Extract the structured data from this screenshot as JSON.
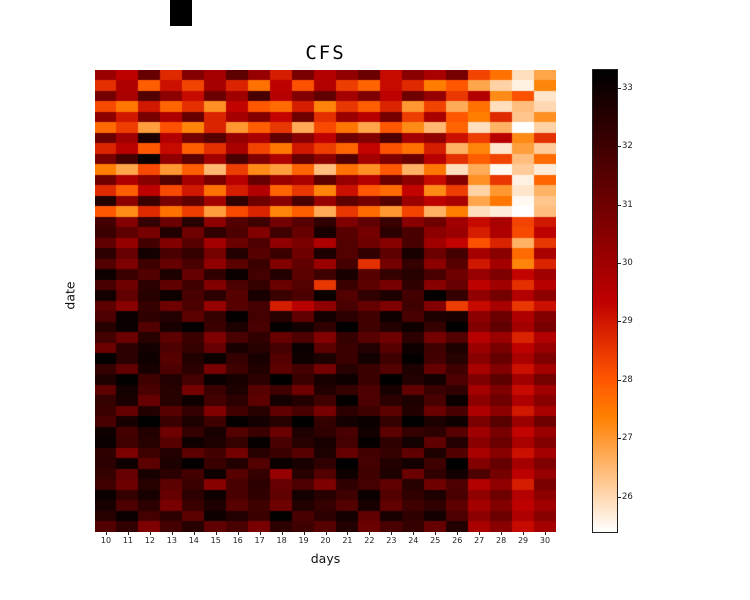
{
  "chart_data": {
    "type": "heatmap",
    "title": "CFS",
    "xlabel": "days",
    "ylabel": "date",
    "x_tick_labels": [
      "10",
      "11",
      "12",
      "13",
      "14",
      "15",
      "16",
      "17",
      "18",
      "19",
      "20",
      "21",
      "22",
      "23",
      "24",
      "25",
      "26",
      "27",
      "28",
      "29",
      "30"
    ],
    "y_tick_labels": [],
    "grid": false,
    "legend": false,
    "colormap": "gist_heat reversed (low=white/light-orange, high=dark-red/black)",
    "colorbar": {
      "position": "right",
      "ticks": [
        33,
        32,
        31,
        30,
        29,
        28,
        27,
        26
      ],
      "vmin": 25.4,
      "vmax": 33.3
    },
    "values": [
      [
        30.1,
        29.4,
        31.2,
        28.7,
        30.6,
        29.9,
        31.4,
        30.2,
        28.9,
        30.8,
        29.6,
        30.3,
        31.1,
        29.2,
        30.5,
        29.8,
        30.9,
        28.3,
        27.6,
        25.9,
        26.8
      ],
      [
        28.6,
        29.7,
        27.9,
        29.1,
        28.3,
        29.9,
        28.8,
        27.6,
        29.4,
        28.1,
        29.6,
        28.4,
        27.8,
        29.2,
        28.7,
        27.4,
        28.0,
        26.8,
        26.1,
        25.6,
        27.3
      ],
      [
        30.9,
        29.8,
        31.6,
        30.4,
        29.2,
        31.1,
        30.0,
        31.8,
        29.5,
        30.6,
        31.3,
        29.9,
        30.7,
        29.4,
        31.0,
        30.2,
        28.5,
        29.6,
        27.2,
        28.1,
        25.8
      ],
      [
        28.2,
        27.5,
        29.0,
        27.8,
        28.6,
        27.1,
        29.3,
        28.0,
        27.7,
        28.9,
        27.3,
        28.5,
        27.9,
        28.8,
        27.0,
        28.3,
        26.7,
        27.6,
        25.9,
        26.4,
        26.0
      ],
      [
        30.4,
        29.0,
        30.8,
        29.7,
        31.2,
        28.8,
        29.9,
        30.6,
        29.3,
        31.0,
        28.6,
        30.1,
        29.5,
        30.9,
        28.4,
        29.8,
        28.0,
        27.4,
        28.7,
        26.3,
        27.1
      ],
      [
        27.7,
        28.4,
        26.9,
        28.1,
        27.3,
        28.8,
        27.0,
        27.9,
        28.5,
        26.7,
        28.2,
        27.5,
        26.8,
        28.0,
        27.2,
        26.5,
        27.8,
        25.9,
        26.6,
        25.4,
        26.1
      ],
      [
        31.1,
        30.0,
        32.7,
        29.6,
        30.9,
        31.5,
        30.2,
        29.8,
        31.3,
        30.5,
        29.4,
        31.0,
        30.6,
        31.7,
        29.9,
        30.3,
        29.1,
        28.4,
        29.5,
        27.2,
        28.6
      ],
      [
        28.8,
        29.5,
        28.0,
        29.2,
        27.9,
        28.6,
        29.8,
        28.3,
        27.5,
        29.0,
        28.4,
        27.8,
        29.3,
        28.1,
        27.6,
        28.9,
        26.6,
        27.3,
        25.8,
        26.9,
        26.2
      ],
      [
        30.8,
        31.9,
        33.1,
        30.3,
        31.4,
        30.0,
        31.8,
        30.6,
        29.7,
        31.2,
        30.4,
        31.6,
        29.9,
        30.7,
        31.1,
        29.5,
        28.6,
        27.9,
        28.3,
        26.4,
        27.7
      ],
      [
        27.4,
        26.8,
        28.2,
        27.0,
        27.9,
        26.5,
        28.4,
        27.2,
        26.9,
        27.8,
        26.4,
        27.6,
        27.1,
        28.0,
        26.6,
        27.5,
        25.9,
        26.7,
        25.5,
        26.2,
        25.7
      ],
      [
        31.0,
        29.7,
        30.5,
        31.6,
        29.9,
        30.8,
        29.5,
        31.2,
        30.1,
        29.8,
        31.4,
        30.2,
        29.6,
        31.1,
        30.4,
        29.2,
        30.6,
        27.1,
        28.5,
        25.6,
        27.8
      ],
      [
        28.7,
        27.9,
        29.4,
        28.2,
        29.0,
        27.6,
        28.9,
        29.6,
        27.8,
        28.5,
        27.3,
        29.1,
        28.0,
        27.7,
        29.3,
        27.2,
        28.4,
        26.1,
        27.0,
        25.8,
        26.6
      ],
      [
        32.6,
        30.4,
        32.1,
        30.8,
        31.3,
        30.0,
        32.3,
        31.0,
        30.5,
        31.8,
        30.2,
        31.4,
        30.9,
        31.5,
        30.1,
        29.4,
        29.8,
        26.8,
        27.5,
        25.5,
        26.3
      ],
      [
        28.0,
        27.2,
        28.7,
        27.6,
        28.4,
        26.9,
        28.2,
        28.8,
        27.3,
        27.9,
        26.7,
        28.5,
        27.7,
        27.0,
        28.3,
        26.6,
        27.4,
        25.9,
        25.7,
        25.4,
        26.4
      ],
      [
        31.9,
        30.6,
        32.2,
        31.1,
        32.5,
        30.4,
        31.6,
        32.0,
        30.9,
        31.5,
        32.3,
        30.7,
        31.3,
        32.1,
        30.5,
        31.0,
        30.0,
        29.2,
        29.8,
        28.3,
        29.0
      ],
      [
        32.1,
        31.4,
        30.8,
        32.6,
        31.0,
        32.3,
        31.7,
        30.6,
        32.0,
        31.2,
        32.8,
        31.5,
        30.9,
        32.4,
        31.8,
        30.4,
        30.1,
        28.9,
        29.7,
        28.2,
        29.4
      ],
      [
        31.3,
        30.2,
        31.9,
        30.6,
        31.5,
        29.9,
        31.1,
        31.7,
        30.3,
        30.8,
        29.7,
        31.6,
        31.0,
        30.5,
        31.8,
        30.0,
        29.3,
        28.1,
        28.8,
        26.6,
        28.5
      ],
      [
        32.4,
        31.2,
        32.9,
        31.8,
        32.2,
        30.9,
        32.6,
        31.5,
        32.1,
        31.0,
        32.7,
        31.6,
        32.3,
        31.4,
        32.8,
        31.1,
        31.9,
        29.9,
        30.5,
        27.7,
        29.8
      ],
      [
        31.6,
        30.7,
        32.0,
        31.2,
        31.8,
        30.3,
        31.4,
        32.1,
        30.6,
        31.3,
        30.1,
        31.9,
        28.6,
        30.9,
        32.2,
        30.4,
        31.5,
        29.0,
        29.9,
        27.3,
        28.8
      ],
      [
        33.0,
        32.1,
        31.6,
        32.7,
        31.2,
        32.3,
        33.1,
        31.9,
        32.6,
        31.4,
        32.0,
        32.8,
        31.5,
        32.2,
        32.5,
        31.8,
        31.0,
        30.2,
        30.7,
        29.3,
        30.0
      ],
      [
        31.8,
        31.0,
        32.4,
        31.3,
        32.0,
        30.6,
        31.7,
        32.2,
        31.1,
        31.6,
        28.5,
        32.1,
        31.4,
        30.8,
        32.3,
        30.5,
        31.2,
        29.4,
        30.0,
        28.6,
        29.5
      ],
      [
        32.9,
        31.3,
        32.5,
        33.0,
        31.8,
        32.4,
        31.5,
        32.8,
        32.1,
        31.7,
        33.1,
        31.6,
        32.3,
        32.7,
        31.9,
        33.2,
        32.2,
        30.3,
        30.9,
        29.6,
        30.4
      ],
      [
        31.4,
        30.5,
        32.2,
        31.0,
        31.7,
        30.2,
        31.5,
        31.9,
        28.9,
        29.5,
        30.3,
        31.8,
        31.2,
        30.7,
        32.0,
        30.6,
        28.4,
        29.2,
        29.8,
        28.5,
        29.1
      ],
      [
        31.7,
        33.1,
        32.3,
        32.6,
        31.4,
        32.2,
        33.2,
        31.9,
        32.5,
        31.3,
        32.9,
        32.4,
        32.0,
        33.0,
        31.8,
        32.7,
        32.8,
        30.4,
        31.1,
        29.7,
        30.6
      ],
      [
        32.5,
        33.1,
        31.6,
        32.8,
        33.2,
        32.1,
        32.7,
        31.8,
        33.2,
        32.9,
        32.3,
        33.3,
        32.0,
        32.6,
        33.0,
        32.2,
        33.3,
        30.6,
        31.3,
        29.9,
        30.8
      ],
      [
        31.9,
        31.1,
        32.5,
        31.4,
        32.1,
        30.7,
        31.8,
        32.3,
        31.2,
        31.7,
        30.6,
        32.2,
        31.5,
        31.0,
        32.4,
        30.9,
        31.6,
        29.5,
        30.1,
        28.8,
        29.6
      ],
      [
        31.1,
        32.4,
        32.9,
        31.7,
        32.2,
        31.2,
        32.8,
        32.5,
        31.9,
        33.1,
        31.4,
        32.1,
        32.6,
        31.5,
        33.0,
        32.0,
        32.7,
        30.1,
        30.8,
        29.4,
        30.2
      ],
      [
        33.2,
        32.4,
        33.0,
        31.5,
        32.6,
        33.1,
        32.2,
        32.8,
        31.6,
        33.0,
        32.7,
        32.1,
        32.9,
        32.0,
        33.2,
        31.9,
        32.5,
        30.5,
        31.2,
        29.8,
        30.7
      ],
      [
        32.2,
        31.3,
        32.8,
        31.7,
        32.4,
        30.8,
        32.0,
        32.6,
        31.4,
        31.9,
        30.9,
        32.5,
        32.1,
        31.6,
        32.7,
        31.2,
        32.0,
        29.8,
        30.6,
        29.1,
        29.9
      ],
      [
        32.7,
        33.2,
        32.0,
        32.6,
        31.9,
        33.1,
        32.8,
        32.4,
        33.3,
        32.1,
        32.8,
        33.0,
        32.1,
        33.3,
        32.6,
        32.9,
        31.7,
        30.7,
        31.4,
        30.0,
        30.9
      ],
      [
        31.4,
        32.9,
        31.8,
        32.5,
        30.9,
        32.1,
        32.7,
        31.5,
        32.0,
        31.0,
        32.6,
        32.2,
        31.7,
        32.8,
        31.3,
        32.1,
        32.3,
        29.9,
        30.7,
        29.2,
        30.0
      ],
      [
        32.2,
        32.8,
        31.2,
        32.5,
        33.0,
        31.9,
        32.4,
        31.4,
        32.9,
        32.6,
        32.0,
        33.2,
        31.7,
        32.4,
        32.7,
        31.8,
        33.1,
        30.4,
        31.0,
        29.7,
        30.5
      ],
      [
        32.1,
        31.2,
        32.6,
        31.5,
        32.2,
        30.6,
        31.9,
        32.5,
        31.3,
        31.8,
        30.8,
        32.4,
        32.0,
        31.4,
        32.6,
        31.1,
        31.8,
        29.7,
        30.4,
        29.0,
        29.8
      ],
      [
        31.8,
        32.8,
        33.3,
        32.1,
        32.7,
        32.0,
        33.2,
        32.9,
        32.5,
        33.3,
        32.2,
        32.9,
        33.1,
        32.2,
        33.3,
        32.7,
        33.0,
        30.8,
        31.5,
        30.1,
        31.0
      ],
      [
        33.0,
        31.9,
        32.6,
        31.0,
        32.2,
        32.8,
        31.6,
        32.1,
        31.1,
        32.7,
        32.3,
        31.8,
        32.9,
        31.4,
        32.2,
        32.4,
        31.5,
        30.0,
        30.8,
        29.3,
        30.1
      ],
      [
        33.1,
        32.0,
        32.5,
        31.5,
        33.0,
        32.7,
        32.2,
        33.2,
        31.8,
        32.5,
        32.8,
        31.9,
        33.2,
        32.3,
        32.9,
        31.3,
        32.6,
        30.5,
        31.1,
        29.8,
        30.6
      ],
      [
        32.3,
        30.7,
        32.0,
        32.6,
        31.4,
        31.9,
        30.9,
        32.5,
        32.1,
        31.5,
        32.7,
        31.2,
        31.9,
        32.2,
        31.3,
        32.7,
        31.6,
        29.8,
        30.5,
        29.1,
        29.9
      ],
      [
        32.4,
        33.0,
        31.4,
        32.7,
        33.2,
        32.1,
        32.6,
        31.6,
        33.1,
        32.8,
        32.3,
        33.3,
        31.9,
        32.6,
        32.9,
        32.0,
        33.3,
        30.6,
        31.2,
        29.9,
        30.7
      ],
      [
        32.2,
        31.2,
        32.8,
        32.4,
        31.9,
        33.0,
        31.5,
        32.2,
        30.2,
        32.5,
        31.6,
        33.0,
        32.0,
        32.7,
        31.1,
        32.3,
        32.9,
        31.7,
        30.9,
        29.4,
        30.2
      ],
      [
        32.0,
        31.1,
        32.5,
        31.4,
        32.1,
        30.5,
        31.8,
        32.4,
        31.2,
        31.7,
        30.7,
        32.3,
        31.9,
        31.3,
        32.5,
        31.0,
        31.7,
        29.6,
        30.3,
        28.9,
        30.8
      ],
      [
        33.1,
        32.2,
        32.8,
        31.2,
        32.4,
        33.0,
        31.8,
        32.3,
        31.3,
        32.9,
        32.5,
        32.0,
        33.1,
        31.6,
        32.3,
        32.7,
        31.8,
        30.3,
        31.0,
        29.6,
        30.4
      ],
      [
        32.8,
        31.7,
        32.4,
        30.8,
        32.1,
        32.7,
        31.5,
        32.0,
        31.0,
        32.6,
        32.2,
        31.6,
        32.8,
        31.3,
        32.0,
        32.3,
        31.4,
        29.9,
        30.6,
        29.4,
        30.0
      ],
      [
        32.5,
        33.1,
        31.9,
        32.4,
        31.4,
        33.0,
        32.6,
        32.1,
        33.2,
        31.8,
        32.4,
        32.9,
        31.3,
        32.8,
        32.3,
        32.9,
        31.7,
        30.4,
        31.1,
        29.7,
        30.5
      ],
      [
        31.6,
        32.3,
        30.7,
        31.9,
        32.5,
        31.3,
        31.8,
        30.8,
        32.4,
        32.0,
        31.5,
        32.6,
        31.1,
        31.8,
        32.2,
        31.2,
        32.6,
        29.8,
        30.5,
        29.2,
        29.9
      ]
    ]
  }
}
